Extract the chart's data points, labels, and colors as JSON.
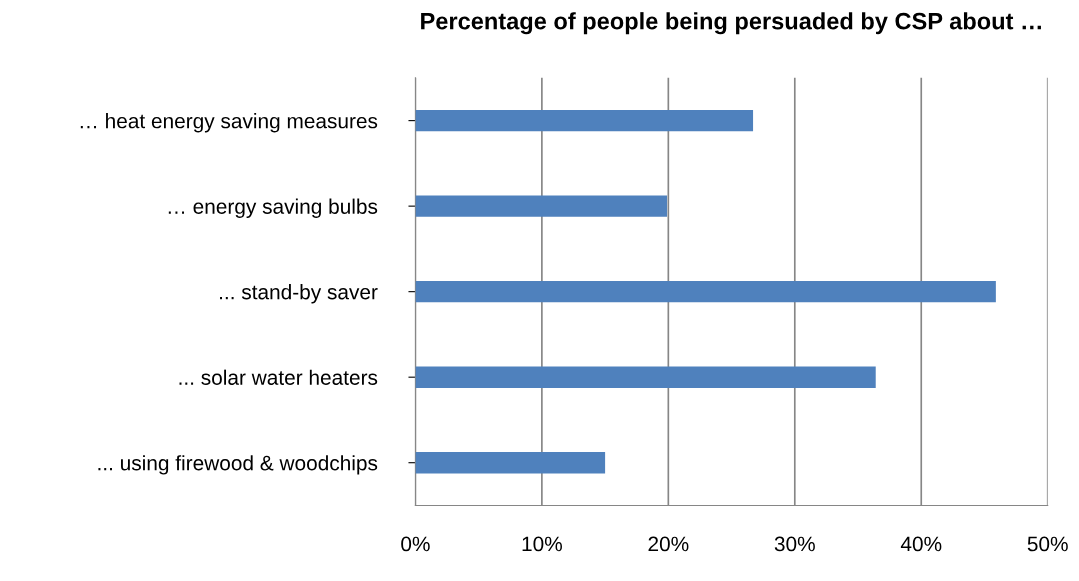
{
  "chart_data": {
    "type": "bar",
    "orientation": "horizontal",
    "title": "Percentage of people being persuaded by CSP about …",
    "categories": [
      "… heat energy saving measures",
      "… energy saving bulbs",
      "... stand-by saver",
      "... solar water heaters",
      "... using firewood & woodchips"
    ],
    "values": [
      26.7,
      19.9,
      45.9,
      36.4,
      15.0
    ],
    "color": "#4f81bd",
    "xlim": [
      0,
      50
    ],
    "xticks": [
      {
        "value": 0,
        "label": "0%"
      },
      {
        "value": 10,
        "label": "10%"
      },
      {
        "value": 20,
        "label": "20%"
      },
      {
        "value": 30,
        "label": "30%"
      },
      {
        "value": 40,
        "label": "40%"
      },
      {
        "value": 50,
        "label": "50%"
      }
    ],
    "grid": "x",
    "legend": false
  }
}
